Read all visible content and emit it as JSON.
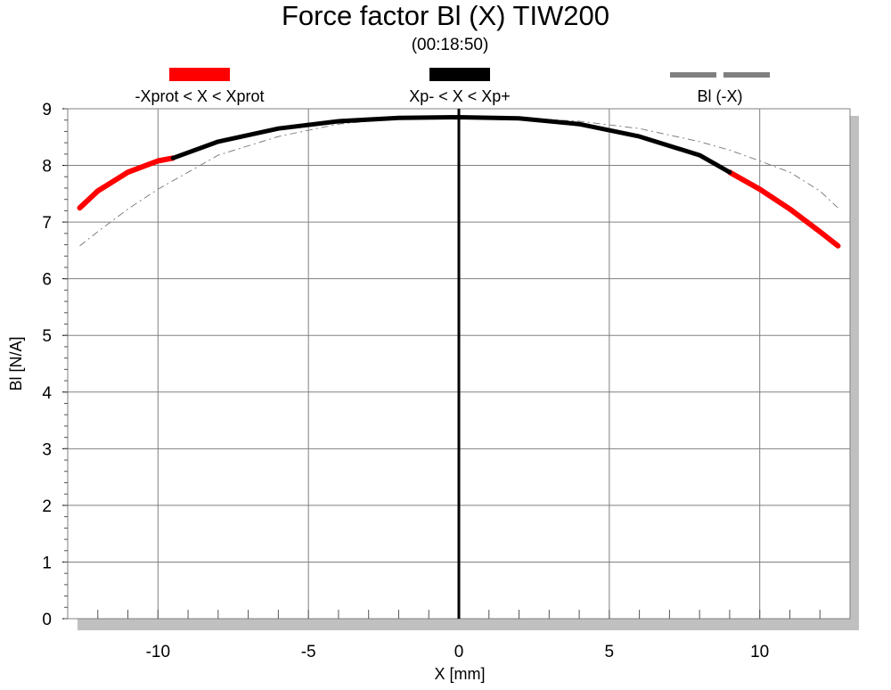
{
  "chart_data": {
    "type": "line",
    "title": "Force factor Bl (X) TIW200",
    "subtitle": "(00:18:50)",
    "xlabel": "X [mm]",
    "ylabel": "Bl [N/A]",
    "xlim": [
      -13.0,
      13.0
    ],
    "ylim": [
      0,
      9
    ],
    "xticks": [
      -10,
      -5,
      0,
      5,
      10
    ],
    "yticks": [
      0,
      1,
      2,
      3,
      4,
      5,
      6,
      7,
      8,
      9
    ],
    "grid": true,
    "legend_position": "top",
    "legend": [
      {
        "label": "-Xprot < X < Xprot",
        "color": "#ff0000",
        "style": "solid"
      },
      {
        "label": "Xp- < X < Xp+",
        "color": "#000000",
        "style": "solid"
      },
      {
        "label": "Bl (-X)",
        "color": "#808080",
        "style": "dashed"
      }
    ],
    "series": [
      {
        "name": "-Xprot < X < Xprot",
        "color": "#ff0000",
        "x": [
          -12.6,
          -12.0,
          -11.0,
          -10.0,
          -9.5,
          9.0,
          10.0,
          11.0,
          12.0,
          12.6
        ],
        "y": [
          7.25,
          7.55,
          7.88,
          8.08,
          8.13,
          7.88,
          7.58,
          7.23,
          6.83,
          6.58
        ]
      },
      {
        "name": "Xp- < X < Xp+",
        "color": "#000000",
        "x": [
          -9.5,
          -8.0,
          -6.0,
          -4.0,
          -2.0,
          0.0,
          2.0,
          4.0,
          6.0,
          8.0,
          9.0
        ],
        "y": [
          8.13,
          8.42,
          8.65,
          8.78,
          8.84,
          8.85,
          8.83,
          8.73,
          8.51,
          8.18,
          7.88
        ]
      },
      {
        "name": "Bl (-X)",
        "color": "#808080",
        "x": [
          -12.6,
          -12.0,
          -11.0,
          -10.0,
          -9.0,
          -8.0,
          -6.0,
          -4.0,
          -2.0,
          0.0,
          2.0,
          4.0,
          6.0,
          8.0,
          9.0,
          10.0,
          11.0,
          12.0,
          12.6
        ],
        "y": [
          6.58,
          6.83,
          7.23,
          7.58,
          7.88,
          8.18,
          8.51,
          8.73,
          8.83,
          8.85,
          8.84,
          8.78,
          8.65,
          8.42,
          8.27,
          8.08,
          7.88,
          7.55,
          7.25
        ]
      }
    ],
    "marker_line": {
      "x": 0
    }
  }
}
